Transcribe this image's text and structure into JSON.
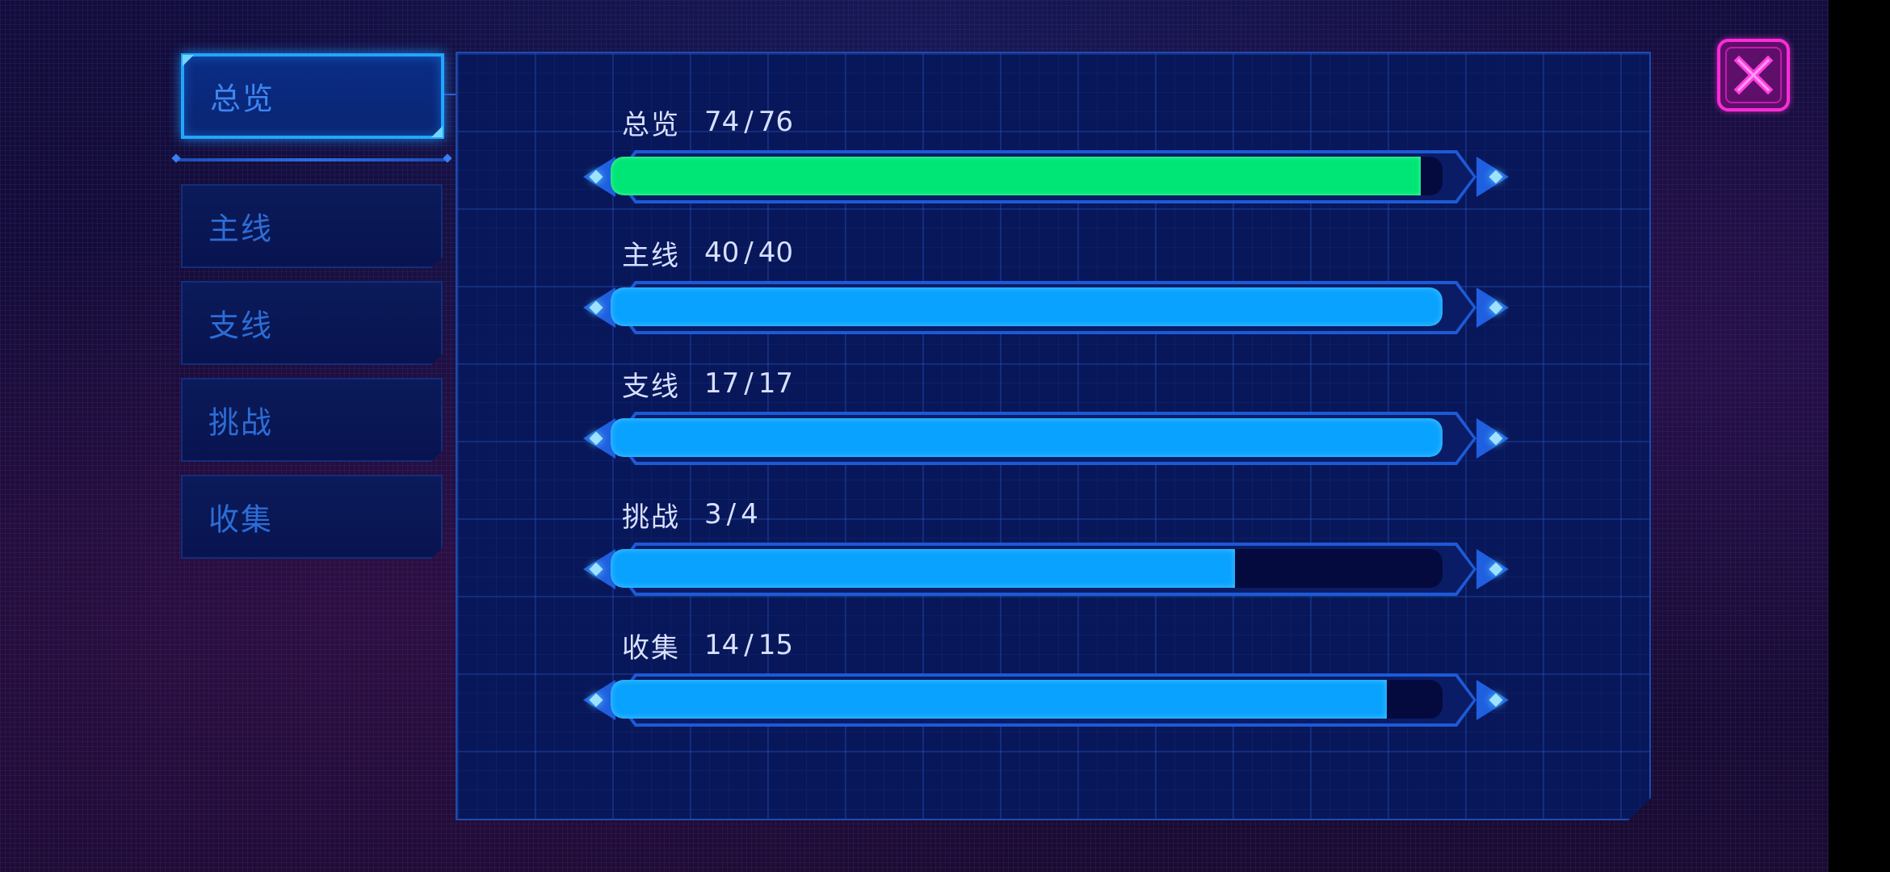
{
  "sidebar": {
    "tabs": [
      {
        "id": "overview",
        "label": "总览",
        "active": true
      },
      {
        "id": "main",
        "label": "主线",
        "active": false
      },
      {
        "id": "side",
        "label": "支线",
        "active": false
      },
      {
        "id": "challenge",
        "label": "挑战",
        "active": false
      },
      {
        "id": "collection",
        "label": "收集",
        "active": false
      }
    ]
  },
  "progress": [
    {
      "name": "总览",
      "current": "74",
      "total": "76",
      "value": 74,
      "max": 76,
      "color": "#00e676"
    },
    {
      "name": "主线",
      "current": "40",
      "total": "40",
      "value": 40,
      "max": 40,
      "color": "#0aa2ff"
    },
    {
      "name": "支线",
      "current": "17",
      "total": "17",
      "value": 17,
      "max": 17,
      "color": "#0aa2ff"
    },
    {
      "name": "挑战",
      "current": "3",
      "total": "4",
      "value": 3,
      "max": 4,
      "color": "#0aa2ff"
    },
    {
      "name": "收集",
      "current": "14",
      "total": "15",
      "value": 14,
      "max": 15,
      "color": "#0aa2ff"
    }
  ],
  "separator": "/",
  "close_button": {
    "icon": "close-icon",
    "color": "#ff2bd8"
  },
  "colors": {
    "panel_bg": "#08175a",
    "accent_blue": "#21a6ff",
    "fill_blue": "#0aa2ff",
    "fill_green": "#00e676"
  }
}
